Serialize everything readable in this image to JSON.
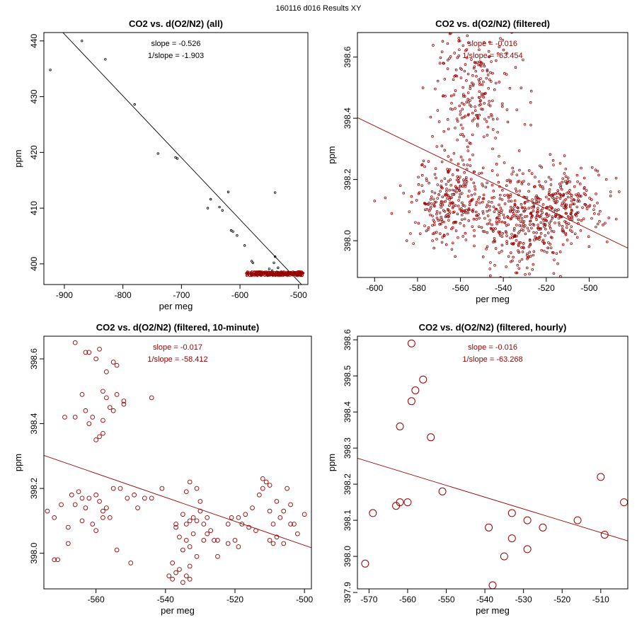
{
  "page_title": "160116   d016   Results XY",
  "colors": {
    "black": "#000000",
    "accent": "#990000"
  },
  "chart_data": [
    {
      "type": "scatter",
      "title": "CO2 vs. d(O2/N2) (all)",
      "xlabel": "per meg",
      "ylabel": "ppm",
      "xlim": [
        -935,
        -484
      ],
      "ylim": [
        396.3,
        441.5
      ],
      "xticks": [
        -900,
        -800,
        -700,
        -600,
        -500
      ],
      "yticks": [
        400,
        410,
        420,
        430,
        440
      ],
      "color_key": "black",
      "slope_text": "slope = -0.526",
      "inv_slope_text": "1/slope = -1.903",
      "fit_line": {
        "x": [
          -935,
          -484
        ],
        "y": [
          445.1,
          395.1
        ]
      },
      "points": [
        [
          -924,
          434.8
        ],
        [
          -870,
          440.0
        ],
        [
          -830,
          436.7
        ],
        [
          -780,
          428.6
        ],
        [
          -740,
          419.8
        ],
        [
          -710,
          419.1
        ],
        [
          -707,
          418.9
        ],
        [
          -655,
          410.0
        ],
        [
          -650,
          411.6
        ],
        [
          -635,
          410.2
        ],
        [
          -630,
          409.6
        ],
        [
          -620,
          412.9
        ],
        [
          -615,
          406.0
        ],
        [
          -612,
          405.8
        ],
        [
          -605,
          405.1
        ],
        [
          -592,
          403.3
        ],
        [
          -580,
          400.5
        ],
        [
          -578,
          400.2
        ],
        [
          -550,
          399.1
        ],
        [
          -542,
          400.2
        ],
        [
          -540,
          401.3
        ],
        [
          -540,
          412.8
        ],
        [
          -535,
          399.3
        ],
        [
          -545,
          398.8
        ]
      ],
      "cluster": {
        "x_range": [
          -590,
          -492
        ],
        "y_range": [
          397.9,
          398.6
        ],
        "count": 320
      }
    },
    {
      "type": "scatter",
      "title": "CO2 vs. d(O2/N2) (filtered)",
      "xlabel": "per meg",
      "ylabel": "ppm",
      "xlim": [
        -608,
        -482
      ],
      "ylim": [
        397.88,
        398.68
      ],
      "xticks": [
        -600,
        -580,
        -560,
        -540,
        -520,
        -500
      ],
      "yticks": [
        398.0,
        398.2,
        398.4,
        398.6
      ],
      "color_key": "accent",
      "slope_text": "slope = -0.016",
      "inv_slope_text": "1/slope = -63.454",
      "fit_line": {
        "x": [
          -608,
          -482
        ],
        "y": [
          398.402,
          397.976
        ]
      },
      "cloud_seed": 7,
      "clouds": [
        {
          "cx": -555,
          "cy": 398.58,
          "sx": 9,
          "sy": 0.06,
          "n": 90
        },
        {
          "cx": -555,
          "cy": 398.43,
          "sx": 9,
          "sy": 0.07,
          "n": 130
        },
        {
          "cx": -562,
          "cy": 398.13,
          "sx": 10,
          "sy": 0.07,
          "n": 300
        },
        {
          "cx": -533,
          "cy": 398.05,
          "sx": 9,
          "sy": 0.08,
          "n": 280
        },
        {
          "cx": -512,
          "cy": 398.11,
          "sx": 9,
          "sy": 0.07,
          "n": 260
        }
      ],
      "outliers": [
        [
          -600,
          398.13
        ],
        [
          -595,
          398.14
        ],
        [
          -588,
          398.18
        ],
        [
          -585,
          398.0
        ],
        [
          -573,
          398.0
        ],
        [
          -490,
          398.16
        ],
        [
          -486,
          398.16
        ],
        [
          -492,
          398.2
        ],
        [
          -545,
          398.3
        ],
        [
          -530,
          398.38
        ]
      ]
    },
    {
      "type": "scatter",
      "title": "CO2 vs. d(O2/N2) (filtered, 10-minute)",
      "xlabel": "per meg",
      "ylabel": "ppm",
      "xlim": [
        -575,
        -498
      ],
      "ylim": [
        397.89,
        398.67
      ],
      "xticks": [
        -560,
        -540,
        -520,
        -500
      ],
      "yticks": [
        398.0,
        398.2,
        398.4,
        398.6
      ],
      "color_key": "accent",
      "slope_text": "slope = -0.017",
      "inv_slope_text": "1/slope = -58.412",
      "fit_line": {
        "x": [
          -575,
          -498
        ],
        "y": [
          398.302,
          398.017
        ]
      },
      "points": [
        [
          -566,
          398.65
        ],
        [
          -563,
          398.62
        ],
        [
          -562,
          398.62
        ],
        [
          -559,
          398.63
        ],
        [
          -557,
          398.56
        ],
        [
          -560,
          398.6
        ],
        [
          -555,
          398.59
        ],
        [
          -554,
          398.58
        ],
        [
          -569,
          398.42
        ],
        [
          -564,
          398.49
        ],
        [
          -566,
          398.42
        ],
        [
          -563,
          398.44
        ],
        [
          -562,
          398.4
        ],
        [
          -560,
          398.35
        ],
        [
          -561,
          398.42
        ],
        [
          -559,
          398.36
        ],
        [
          -558,
          398.41
        ],
        [
          -557,
          398.48
        ],
        [
          -556,
          398.45
        ],
        [
          -555,
          398.44
        ],
        [
          -554,
          398.49
        ],
        [
          -552,
          398.46
        ],
        [
          -552,
          398.47
        ],
        [
          -544,
          398.48
        ],
        [
          -558,
          398.5
        ],
        [
          -558,
          398.37
        ],
        [
          -574,
          398.13
        ],
        [
          -572,
          398.11
        ],
        [
          -570,
          398.15
        ],
        [
          -568,
          398.08
        ],
        [
          -567,
          398.18
        ],
        [
          -566,
          398.15
        ],
        [
          -565,
          398.19
        ],
        [
          -564,
          398.17
        ],
        [
          -563,
          398.14
        ],
        [
          -562,
          398.17
        ],
        [
          -561,
          398.09
        ],
        [
          -560,
          398.18
        ],
        [
          -559,
          398.16
        ],
        [
          -558,
          398.13
        ],
        [
          -557,
          398.14
        ],
        [
          -556,
          398.11
        ],
        [
          -555,
          398.2
        ],
        [
          -553,
          398.2
        ],
        [
          -551,
          398.17
        ],
        [
          -549,
          398.18
        ],
        [
          -548,
          398.14
        ],
        [
          -546,
          398.17
        ],
        [
          -541,
          398.2
        ],
        [
          -544,
          398.17
        ],
        [
          -568,
          398.03
        ],
        [
          -564,
          398.1
        ],
        [
          -560,
          398.07
        ],
        [
          -558,
          398.11
        ],
        [
          -554,
          398.01
        ],
        [
          -550,
          397.97
        ],
        [
          -572,
          397.98
        ],
        [
          -571,
          397.98
        ],
        [
          -537,
          398.09
        ],
        [
          -537,
          398.08
        ],
        [
          -535,
          398.12
        ],
        [
          -534,
          398.09
        ],
        [
          -533,
          398.1
        ],
        [
          -532,
          398.11
        ],
        [
          -531,
          398.1
        ],
        [
          -530,
          398.13
        ],
        [
          -529,
          398.09
        ],
        [
          -528,
          398.11
        ],
        [
          -527,
          398.07
        ],
        [
          -536,
          398.05
        ],
        [
          -534,
          398.04
        ],
        [
          -533,
          398.02
        ],
        [
          -535,
          398.01
        ],
        [
          -532,
          398.06
        ],
        [
          -531,
          397.99
        ],
        [
          -529,
          398.04
        ],
        [
          -528,
          398.06
        ],
        [
          -526,
          398.04
        ],
        [
          -536,
          397.95
        ],
        [
          -535,
          397.91
        ],
        [
          -534,
          397.93
        ],
        [
          -533,
          397.96
        ],
        [
          -538,
          397.97
        ],
        [
          -537,
          397.94
        ],
        [
          -533,
          397.92
        ],
        [
          -539,
          397.93
        ],
        [
          -538,
          397.92
        ],
        [
          -534,
          398.19
        ],
        [
          -533,
          398.22
        ],
        [
          -531,
          398.2
        ],
        [
          -530,
          398.16
        ],
        [
          -522,
          398.09
        ],
        [
          -521,
          398.11
        ],
        [
          -520,
          398.04
        ],
        [
          -519,
          398.11
        ],
        [
          -518,
          398.09
        ],
        [
          -517,
          398.12
        ],
        [
          -516,
          398.08
        ],
        [
          -515,
          398.14
        ],
        [
          -514,
          398.07
        ],
        [
          -513,
          398.18
        ],
        [
          -512,
          398.2
        ],
        [
          -511,
          398.22
        ],
        [
          -510,
          398.13
        ],
        [
          -509,
          398.09
        ],
        [
          -508,
          398.05
        ],
        [
          -507,
          398.11
        ],
        [
          -506,
          398.13
        ],
        [
          -505,
          398.2
        ],
        [
          -504,
          398.15
        ],
        [
          -503,
          398.09
        ],
        [
          -502,
          398.06
        ],
        [
          -500,
          398.12
        ],
        [
          -522,
          398.03
        ],
        [
          -519,
          398.02
        ],
        [
          -510,
          398.04
        ],
        [
          -509,
          398.03
        ],
        [
          -508,
          398.16
        ],
        [
          -512,
          398.23
        ],
        [
          -510,
          398.21
        ],
        [
          -525,
          398.04
        ],
        [
          -525,
          397.99
        ],
        [
          -504,
          398.09
        ],
        [
          -506,
          398.03
        ]
      ]
    },
    {
      "type": "scatter",
      "title": "CO2 vs. d(O2/N2) (filtered, hourly)",
      "xlabel": "per meg",
      "ylabel": "ppm",
      "xlim": [
        -573,
        -503
      ],
      "ylim": [
        397.91,
        398.61
      ],
      "xticks": [
        -570,
        -560,
        -550,
        -540,
        -530,
        -520,
        -510
      ],
      "yticks": [
        397.9,
        398.0,
        398.1,
        398.2,
        398.3,
        398.4,
        398.5,
        398.6
      ],
      "color_key": "accent",
      "slope_text": "slope = -0.016",
      "inv_slope_text": "1/slope = -63.268",
      "fit_line": {
        "x": [
          -573,
          -503
        ],
        "y": [
          398.272,
          398.043
        ]
      },
      "points": [
        [
          -571,
          397.98
        ],
        [
          -569,
          398.12
        ],
        [
          -563,
          398.14
        ],
        [
          -562,
          398.15
        ],
        [
          -562,
          398.36
        ],
        [
          -560,
          398.15
        ],
        [
          -559,
          398.43
        ],
        [
          -559,
          398.59
        ],
        [
          -558,
          398.46
        ],
        [
          -556,
          398.49
        ],
        [
          -554,
          398.33
        ],
        [
          -551,
          398.18
        ],
        [
          -539,
          398.08
        ],
        [
          -538,
          397.92
        ],
        [
          -535,
          398.0
        ],
        [
          -533,
          398.05
        ],
        [
          -533,
          398.12
        ],
        [
          -529,
          398.1
        ],
        [
          -529,
          398.02
        ],
        [
          -525,
          398.08
        ],
        [
          -516,
          398.1
        ],
        [
          -510,
          398.22
        ],
        [
          -509,
          398.06
        ],
        [
          -504,
          398.15
        ]
      ]
    }
  ]
}
